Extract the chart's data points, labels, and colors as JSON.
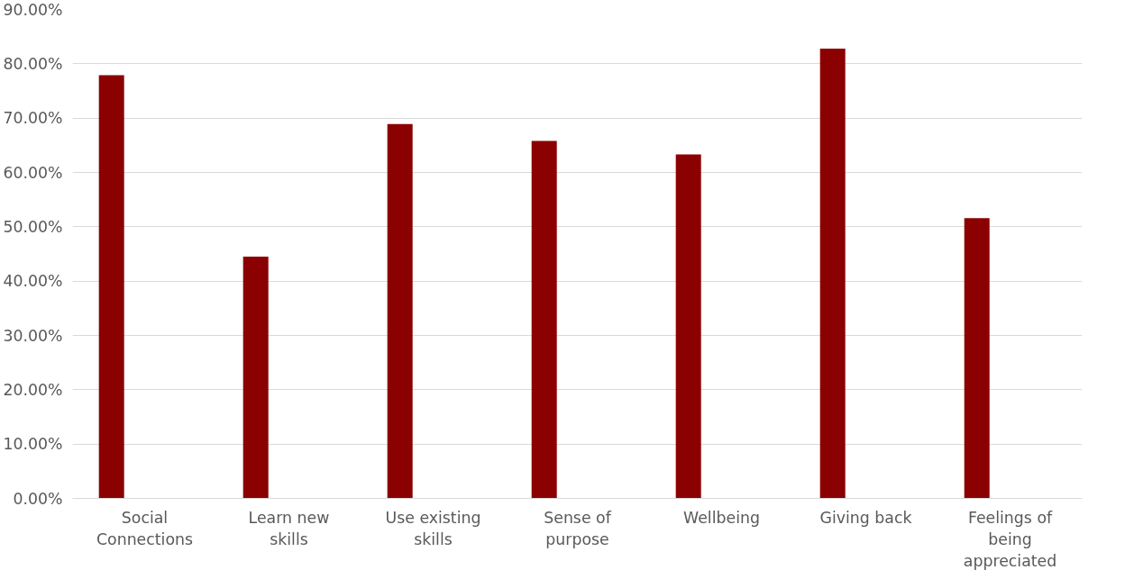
{
  "chart_data": {
    "type": "bar",
    "categories": [
      "Social Connections",
      "Learn new skills",
      "Use existing skills",
      "Sense of purpose",
      "Wellbeing",
      "Giving back",
      "Feelings of being appreciated"
    ],
    "values": [
      77.9,
      44.5,
      68.9,
      65.8,
      63.3,
      82.8,
      51.6
    ],
    "color": "#8b0000",
    "ylim": [
      0,
      90
    ],
    "yticks": [
      {
        "value": 0,
        "label": "0.00%"
      },
      {
        "value": 10,
        "label": "10.00%"
      },
      {
        "value": 20,
        "label": "20.00%"
      },
      {
        "value": 30,
        "label": "30.00%"
      },
      {
        "value": 40,
        "label": "40.00%"
      },
      {
        "value": 50,
        "label": "50.00%"
      },
      {
        "value": 60,
        "label": "60.00%"
      },
      {
        "value": 70,
        "label": "70.00%"
      },
      {
        "value": 80,
        "label": "80.00%"
      },
      {
        "value": 90,
        "label": "90.00%"
      }
    ],
    "grid": "y"
  }
}
